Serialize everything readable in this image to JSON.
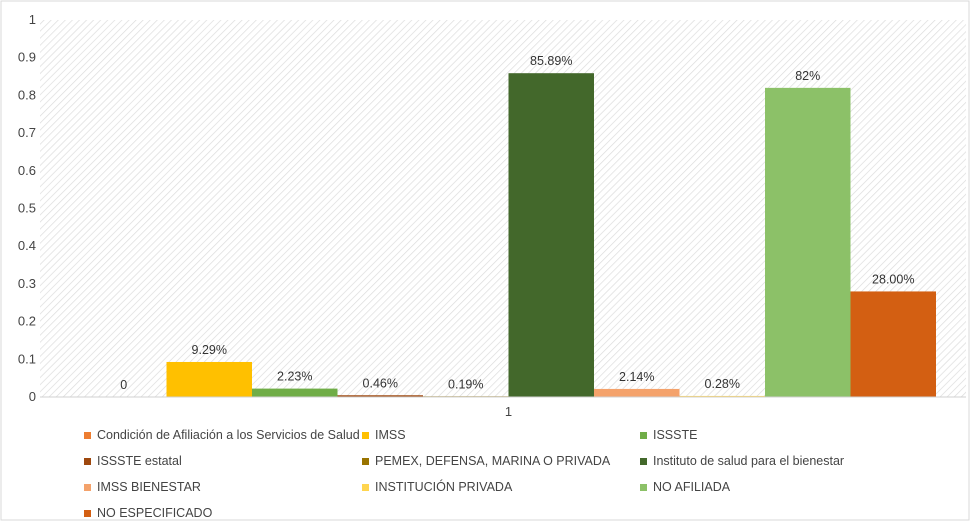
{
  "chart_data": {
    "type": "bar",
    "categories": [
      "1"
    ],
    "ylim": [
      0,
      1
    ],
    "yticks": [
      "0",
      "0.1",
      "0.2",
      "0.3",
      "0.4",
      "0.5",
      "0.6",
      "0.7",
      "0.8",
      "0.9",
      "1"
    ],
    "ytick_values": [
      0,
      0.1,
      0.2,
      0.3,
      0.4,
      0.5,
      0.6,
      0.7,
      0.8,
      0.9,
      1
    ],
    "grid": false,
    "legend_position": "bottom",
    "series": [
      {
        "name": "Condición de Afiliación a los Servicios de Salud",
        "values": [
          0
        ],
        "label": "0",
        "color": "#ED7D31"
      },
      {
        "name": "IMSS",
        "values": [
          0.0929
        ],
        "label": "9.29%",
        "color": "#FFC000"
      },
      {
        "name": "ISSSTE",
        "values": [
          0.0223
        ],
        "label": "2.23%",
        "color": "#70AD47"
      },
      {
        "name": "ISSSTE estatal",
        "values": [
          0.0046
        ],
        "label": "0.46%",
        "color": "#9E480E"
      },
      {
        "name": "PEMEX, DEFENSA, MARINA O PRIVADA",
        "values": [
          0.0019
        ],
        "label": "0.19%",
        "color": "#997300"
      },
      {
        "name": "Instituto de salud para el bienestar",
        "values": [
          0.8589
        ],
        "label": "85.89%",
        "color": "#43682B"
      },
      {
        "name": "IMSS BIENESTAR",
        "values": [
          0.0214
        ],
        "label": "2.14%",
        "color": "#F4A26B"
      },
      {
        "name": "INSTITUCIÓN PRIVADA",
        "values": [
          0.0028
        ],
        "label": "0.28%",
        "color": "#FFD54F"
      },
      {
        "name": "NO AFILIADA",
        "values": [
          0.82
        ],
        "label": "82%",
        "color": "#8CC168"
      },
      {
        "name": "NO ESPECIFICADO",
        "values": [
          0.28
        ],
        "label": "28.00%",
        "color": "#D35F12"
      }
    ]
  }
}
